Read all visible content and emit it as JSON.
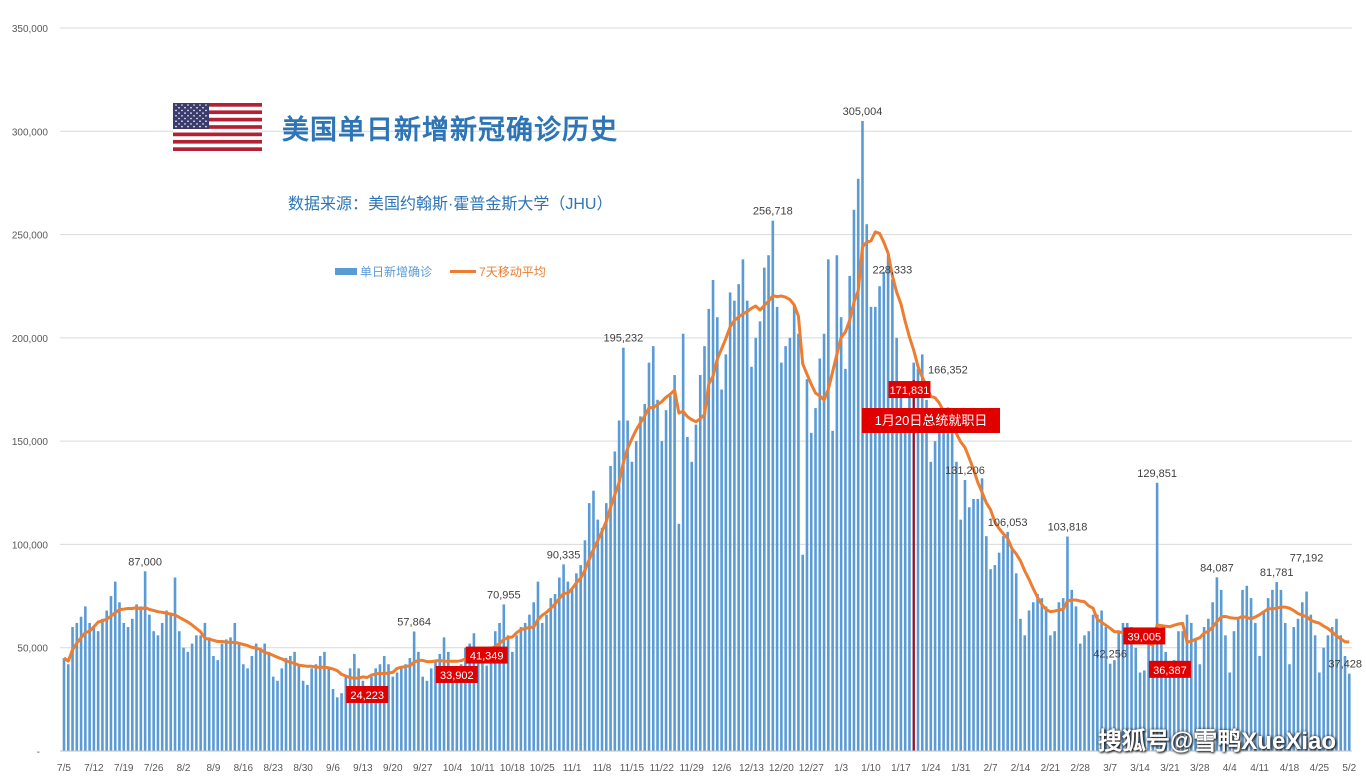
{
  "title": "美国单日新增新冠确诊历史",
  "subtitle": "数据来源：美国约翰斯·霍普金斯大学（JHU）",
  "event_label": "1月20日总统就职日",
  "event_date": "1/20",
  "watermark": "搜狐号@雪鸭XueXiao",
  "colors": {
    "bar": "#5b9bd5",
    "line": "#ed7d31",
    "title": "#2e75b6",
    "highlight": "#e00000"
  },
  "chart_data": {
    "type": "bar+line",
    "ylim": [
      0,
      350000
    ],
    "yticks": [
      "-",
      "50,000",
      "100,000",
      "150,000",
      "200,000",
      "250,000",
      "300,000",
      "350,000"
    ],
    "grid": true,
    "legend_position": "top-left",
    "xticks": [
      "7/5",
      "7/12",
      "7/19",
      "7/26",
      "8/2",
      "8/9",
      "8/16",
      "8/23",
      "8/30",
      "9/6",
      "9/13",
      "9/20",
      "9/27",
      "10/4",
      "10/11",
      "10/18",
      "10/25",
      "11/1",
      "11/8",
      "11/15",
      "11/22",
      "11/29",
      "12/6",
      "12/13",
      "12/20",
      "12/27",
      "1/3",
      "1/10",
      "1/17",
      "1/24",
      "1/31",
      "2/7",
      "2/14",
      "2/21",
      "2/28",
      "3/7",
      "3/14",
      "3/21",
      "3/28",
      "4/4",
      "4/11",
      "4/18",
      "4/25",
      "5/2"
    ],
    "series": [
      {
        "name": "单日新增确诊",
        "type": "bar",
        "values": [
          45000,
          42000,
          60000,
          62000,
          65000,
          70000,
          62000,
          60000,
          58000,
          64000,
          68000,
          75000,
          82000,
          72000,
          62000,
          60000,
          64000,
          71000,
          70000,
          87000,
          66000,
          58000,
          56000,
          62000,
          68000,
          67000,
          84000,
          58000,
          50000,
          48000,
          52000,
          56000,
          56000,
          62000,
          55000,
          46000,
          44000,
          52000,
          54000,
          55000,
          62000,
          52000,
          42000,
          40000,
          46000,
          52000,
          50000,
          52000,
          48000,
          36000,
          34000,
          40000,
          45000,
          46000,
          48000,
          42000,
          34000,
          32000,
          40000,
          42000,
          46000,
          48000,
          40000,
          30000,
          26000,
          28000,
          36000,
          40000,
          47000,
          40000,
          34000,
          24223,
          36000,
          40000,
          42000,
          46000,
          42000,
          36000,
          38000,
          40000,
          42000,
          45000,
          57864,
          48000,
          36000,
          34000,
          40000,
          44000,
          47000,
          55000,
          48000,
          36000,
          33902,
          42000,
          50000,
          52000,
          57000,
          50000,
          46000,
          41349,
          50000,
          58000,
          62000,
          70955,
          56000,
          48000,
          56000,
          60000,
          62000,
          66000,
          72000,
          82000,
          62000,
          66000,
          74000,
          76000,
          84000,
          90335,
          82000,
          78000,
          86000,
          90000,
          102000,
          120000,
          126000,
          112000,
          108000,
          120000,
          138000,
          145000,
          160000,
          195232,
          160000,
          140000,
          150000,
          162000,
          168000,
          188000,
          196000,
          170000,
          150000,
          165000,
          172000,
          182000,
          110000,
          202000,
          152000,
          140000,
          158000,
          182000,
          196000,
          214000,
          228000,
          210000,
          175000,
          192000,
          222000,
          218000,
          226000,
          238000,
          218000,
          186000,
          200000,
          208000,
          234000,
          240000,
          256718,
          215000,
          188000,
          196000,
          200000,
          216000,
          202000,
          95000,
          180000,
          154000,
          166000,
          190000,
          202000,
          238000,
          155000,
          240000,
          210000,
          185000,
          230000,
          262000,
          277000,
          305004,
          255000,
          215000,
          215000,
          225000,
          232000,
          240000,
          228333,
          200000,
          175000,
          155000,
          171831,
          188000,
          185000,
          192000,
          170000,
          140000,
          150000,
          154000,
          160000,
          166352,
          165000,
          140000,
          112000,
          131206,
          118000,
          122000,
          122000,
          132000,
          104000,
          88000,
          90000,
          96000,
          104000,
          106053,
          98000,
          86000,
          64000,
          56000,
          68000,
          72000,
          76000,
          74000,
          70000,
          56000,
          58000,
          72000,
          74000,
          103818,
          78000,
          70000,
          52000,
          56000,
          58000,
          66000,
          66000,
          68000,
          60000,
          42256,
          44000,
          58000,
          62000,
          62000,
          60000,
          50000,
          38000,
          39005,
          54000,
          56000,
          129851,
          58000,
          48000,
          36387,
          44000,
          58000,
          58000,
          66000,
          62000,
          54000,
          42000,
          60000,
          64000,
          72000,
          84087,
          78000,
          56000,
          38000,
          58000,
          64000,
          78000,
          80000,
          74000,
          62000,
          46000,
          68000,
          74000,
          78000,
          81781,
          78000,
          62000,
          42000,
          60000,
          64000,
          72000,
          77192,
          66000,
          56000,
          38000,
          50000,
          56000,
          60000,
          64000,
          56000,
          46000,
          37428
        ]
      },
      {
        "name": "7天移动平均",
        "type": "line",
        "source": "7-day moving average of 单日新增确诊"
      }
    ],
    "annotations": [
      {
        "date": "7/24",
        "text": "87,000",
        "highlight": false
      },
      {
        "date": "9/14",
        "text": "24,223",
        "highlight": true
      },
      {
        "date": "9/25",
        "text": "57,864",
        "highlight": false
      },
      {
        "date": "10/5",
        "text": "33,902",
        "highlight": true
      },
      {
        "date": "10/12",
        "text": "41,349",
        "highlight": true
      },
      {
        "date": "10/16",
        "text": "70,955",
        "highlight": false
      },
      {
        "date": "10/30",
        "text": "90,335",
        "highlight": false
      },
      {
        "date": "11/13",
        "text": "195,232",
        "highlight": false
      },
      {
        "date": "12/18",
        "text": "256,718",
        "highlight": false
      },
      {
        "date": "1/8",
        "text": "305,004",
        "highlight": false
      },
      {
        "date": "1/15",
        "text": "228,333",
        "highlight": false
      },
      {
        "date": "1/19",
        "text": "171,831",
        "highlight": true
      },
      {
        "date": "1/28",
        "text": "166,352",
        "highlight": false
      },
      {
        "date": "2/1",
        "text": "131,206",
        "highlight": false
      },
      {
        "date": "2/11",
        "text": "106,053",
        "highlight": false
      },
      {
        "date": "2/25",
        "text": "103,818",
        "highlight": false
      },
      {
        "date": "3/7",
        "text": "42,256",
        "highlight": false
      },
      {
        "date": "3/15",
        "text": "39,005",
        "highlight": true
      },
      {
        "date": "3/18",
        "text": "129,851",
        "highlight": false
      },
      {
        "date": "3/21",
        "text": "36,387",
        "highlight": true
      },
      {
        "date": "4/1",
        "text": "84,087",
        "highlight": false
      },
      {
        "date": "4/15",
        "text": "81,781",
        "highlight": false
      },
      {
        "date": "4/22",
        "text": "77,192",
        "highlight": false
      },
      {
        "date": "5/2",
        "text": "37,428",
        "highlight": false
      }
    ]
  }
}
